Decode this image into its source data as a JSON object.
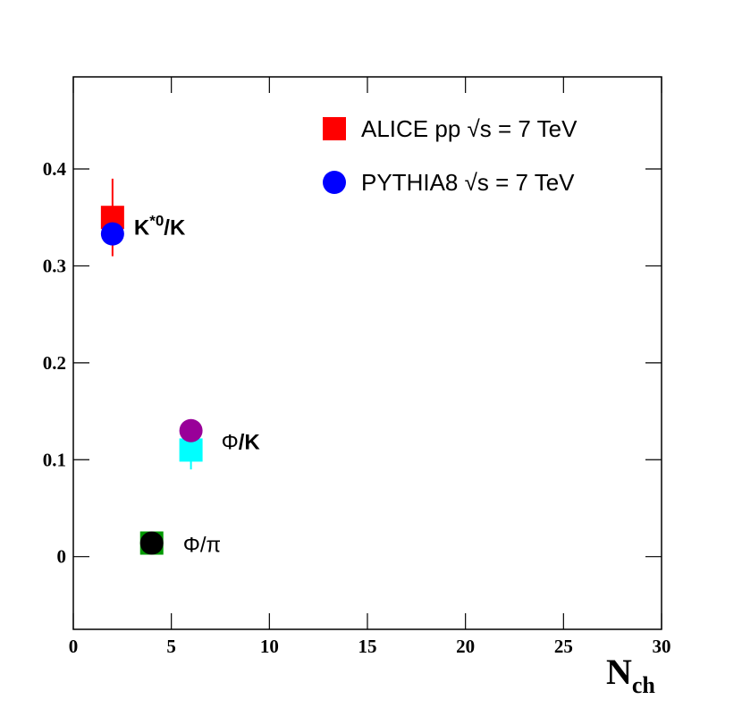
{
  "chart_data": {
    "type": "scatter",
    "xlabel": "N",
    "xlabel_sub": "ch",
    "xlim": [
      0,
      30
    ],
    "xticks": [
      0,
      5,
      10,
      15,
      20,
      25,
      30
    ],
    "ylim": [
      -0.075,
      0.495
    ],
    "yticks": [
      0,
      0.1,
      0.2,
      0.3,
      0.4
    ],
    "annotations": [
      [
        "K",
        "*0",
        "/K"
      ],
      [
        "Φ",
        "/K"
      ],
      [
        "Φ/π"
      ]
    ],
    "series": [
      {
        "name": "ALICE pp √s = 7 TeV",
        "marker": "square",
        "color": "#ff0000",
        "point_colors": [
          "#ff0000",
          "#00ffff",
          "#009900"
        ],
        "x": [
          2,
          6,
          4
        ],
        "values": [
          0.35,
          0.11,
          0.014
        ],
        "errors": [
          0.04,
          0.02,
          0.004
        ]
      },
      {
        "name": "PYTHIA8 √s = 7 TeV",
        "marker": "circle",
        "color": "#0000ff",
        "point_colors": [
          "#0000ff",
          "#990099",
          "#000000"
        ],
        "x": [
          2,
          6,
          4
        ],
        "values": [
          0.333,
          0.13,
          0.014
        ]
      }
    ],
    "legend": "upper right"
  }
}
